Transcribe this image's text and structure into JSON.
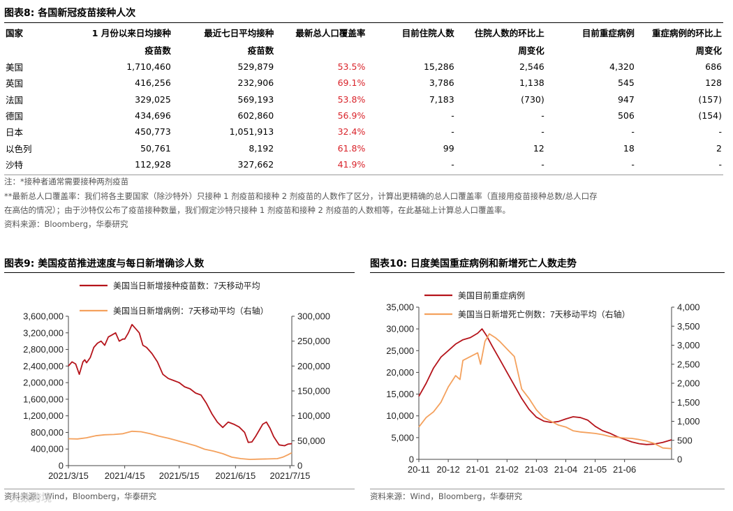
{
  "table": {
    "title": "图表8:  各国新冠疫苗接种人次",
    "headers": {
      "country": "国家",
      "c1_line1": "1 月份以来日均接种",
      "c1_line2": "疫苗数",
      "c2_line1": "最近七日平均接种",
      "c2_line2": "疫苗数",
      "c3": "最新总人口覆盖率",
      "c4": "目前住院人数",
      "c5_line1": "住院人数的环比上",
      "c5_line2": "周变化",
      "c6": "目前重症病例",
      "c7_line1": "重症病例的环比上",
      "c7_line2": "周变化"
    },
    "rows": [
      {
        "country": "美国",
        "daily": "1,710,460",
        "week": "529,879",
        "coverage": "53.5%",
        "hosp": "15,286",
        "hosp_chg": "2,546",
        "severe": "4,320",
        "severe_chg": "686"
      },
      {
        "country": "英国",
        "daily": "416,256",
        "week": "232,906",
        "coverage": "69.1%",
        "hosp": "3,786",
        "hosp_chg": "1,138",
        "severe": "545",
        "severe_chg": "128"
      },
      {
        "country": "法国",
        "daily": "329,025",
        "week": "569,193",
        "coverage": "53.8%",
        "hosp": "7,183",
        "hosp_chg": "(730)",
        "severe": "947",
        "severe_chg": "(157)"
      },
      {
        "country": "德国",
        "daily": "434,696",
        "week": "602,860",
        "coverage": "56.9%",
        "hosp": "-",
        "hosp_chg": "-",
        "severe": "506",
        "severe_chg": "(154)"
      },
      {
        "country": "日本",
        "daily": "450,773",
        "week": "1,051,913",
        "coverage": "32.4%",
        "hosp": "-",
        "hosp_chg": "-",
        "severe": "-",
        "severe_chg": "-"
      },
      {
        "country": "以色列",
        "daily": "50,761",
        "week": "8,192",
        "coverage": "61.8%",
        "hosp": "99",
        "hosp_chg": "12",
        "severe": "18",
        "severe_chg": "2"
      },
      {
        "country": "沙特",
        "daily": "112,928",
        "week": "327,662",
        "coverage": "41.9%",
        "hosp": "-",
        "hosp_chg": "-",
        "severe": "-",
        "severe_chg": "-"
      }
    ],
    "note1": "注：*接种者通常需要接种两剂疫苗",
    "note2": "**最新总人口覆盖率：我们将各主要国家（除沙特外）只接种 1 剂疫苗和接种 2 剂疫苗的人数作了区分，计算出更精确的总人口覆盖率（直接用疫苗接种总数/总人口存",
    "note3": "在高估的情况）；由于沙特仅公布了疫苗接种数量，我们假定沙特只接种 1 剂疫苗和接种 2 剂疫苗的人数相等，在此基础上计算总人口覆盖率。",
    "source": "资料来源：Bloomberg，华泰研究"
  },
  "charts": {
    "left_title": "图表9:  美国疫苗推进速度与每日新增确诊人数",
    "right_title": "图表10:  日度美国重症病例和新增死亡人数走势",
    "left_source": "资料来源：Wind，Bloomberg，华泰研究",
    "right_source": "资料来源：Wind，Bloomberg，华泰研究",
    "watermark": "大数跨境"
  },
  "colors": {
    "dark_red": "#b5141b",
    "orange": "#f4a15d",
    "red_text": "#d9232a"
  },
  "chart_data": [
    {
      "type": "line",
      "title": "美国疫苗推进速度与每日新增确诊人数",
      "xticks": [
        "2021/3/15",
        "2021/4/15",
        "2021/5/15",
        "2021/6/15",
        "2021/7/15"
      ],
      "ylim_left": [
        0,
        3600000
      ],
      "ylim_right": [
        0,
        300000
      ],
      "yticks_left": [
        "0",
        "400,000",
        "800,000",
        "1,200,000",
        "1,600,000",
        "2,000,000",
        "2,400,000",
        "2,800,000",
        "3,200,000",
        "3,600,000"
      ],
      "yticks_right": [
        "0",
        "50,000",
        "100,000",
        "150,000",
        "200,000",
        "250,000",
        "300,000"
      ],
      "legend_position": "top",
      "series": [
        {
          "name": "美国当日新增接种疫苗数：7天移动平均",
          "axis": "left",
          "x": [
            0,
            2,
            4,
            6,
            8,
            9,
            10,
            12,
            14,
            16,
            18,
            20,
            22,
            24,
            26,
            28,
            30,
            31,
            33,
            35,
            37,
            39,
            41,
            43,
            46,
            49,
            52,
            55,
            58,
            61,
            64,
            67,
            70,
            73,
            76,
            79,
            82,
            85,
            88,
            91,
            94,
            97,
            99,
            101,
            103,
            105,
            107,
            109,
            111,
            113,
            116,
            119,
            121,
            123
          ],
          "values": [
            2400000,
            2500000,
            2450000,
            2200000,
            2500000,
            2550000,
            2480000,
            2600000,
            2850000,
            2950000,
            3000000,
            2900000,
            3100000,
            3150000,
            3200000,
            3000000,
            3050000,
            3050000,
            3200000,
            3400000,
            3300000,
            3200000,
            2900000,
            2850000,
            2700000,
            2500000,
            2200000,
            2100000,
            2050000,
            2000000,
            1900000,
            1850000,
            1750000,
            1700000,
            1500000,
            1250000,
            1050000,
            920000,
            1050000,
            1000000,
            930000,
            800000,
            560000,
            570000,
            700000,
            850000,
            1000000,
            1050000,
            900000,
            700000,
            500000,
            480000,
            520000,
            530000
          ]
        },
        {
          "name": "美国当日新增病例：7天移动平均（右轴）",
          "axis": "right",
          "x": [
            0,
            5,
            10,
            15,
            20,
            25,
            30,
            35,
            40,
            45,
            50,
            55,
            60,
            65,
            70,
            75,
            80,
            85,
            90,
            95,
            100,
            105,
            110,
            115,
            118,
            121,
            123
          ],
          "values": [
            54000,
            53500,
            56000,
            60000,
            62000,
            62500,
            64000,
            69000,
            68000,
            64000,
            59000,
            55000,
            50000,
            45000,
            40000,
            33000,
            29000,
            24000,
            17000,
            14000,
            12500,
            13000,
            13500,
            14000,
            17000,
            22000,
            26000
          ]
        }
      ]
    },
    {
      "type": "line",
      "title": "日度美国重症病例和新增死亡人数走势",
      "xticks": [
        "20-11",
        "20-12",
        "21-01",
        "21-02",
        "21-03",
        "21-04",
        "21-05",
        "21-06"
      ],
      "ylim_left": [
        0,
        35000
      ],
      "ylim_right": [
        0,
        4000
      ],
      "yticks_left": [
        "0",
        "5,000",
        "10,000",
        "15,000",
        "20,000",
        "25,000",
        "30,000",
        "35,000"
      ],
      "yticks_right": [
        "0",
        "500",
        "1,000",
        "1,500",
        "2,000",
        "2,500",
        "3,000",
        "3,500",
        "4,000"
      ],
      "legend_position": "top",
      "series": [
        {
          "name": "美国目前重症病例",
          "axis": "left",
          "x": [
            0,
            0.25,
            0.5,
            0.75,
            1,
            1.25,
            1.5,
            1.75,
            2,
            2.15,
            2.3,
            2.5,
            2.75,
            3,
            3.25,
            3.5,
            3.75,
            4,
            4.25,
            4.5,
            4.75,
            5,
            5.25,
            5.5,
            5.75,
            6,
            6.25,
            6.5,
            6.75,
            7,
            7.25,
            7.5,
            7.75,
            8,
            8.3,
            8.6
          ],
          "values": [
            14500,
            17500,
            21000,
            23500,
            25000,
            26500,
            27500,
            28000,
            29000,
            30000,
            28500,
            26000,
            23000,
            20000,
            17000,
            14000,
            11500,
            9700,
            8800,
            8500,
            8700,
            9300,
            9800,
            9600,
            9000,
            7600,
            6600,
            6000,
            5200,
            4600,
            4000,
            3600,
            3400,
            3500,
            3900,
            4500
          ]
        },
        {
          "name": "美国当日新增死亡例数：7天移动平均（右轴）",
          "axis": "right",
          "x": [
            0,
            0.25,
            0.5,
            0.75,
            1,
            1.25,
            1.4,
            1.5,
            1.75,
            2,
            2.1,
            2.25,
            2.4,
            2.6,
            2.75,
            3,
            3.25,
            3.5,
            3.75,
            4,
            4.25,
            4.5,
            4.75,
            5,
            5.25,
            5.5,
            5.75,
            6,
            6.25,
            6.5,
            6.75,
            7,
            7.25,
            7.5,
            7.75,
            8,
            8.3,
            8.6
          ],
          "values": [
            850,
            1100,
            1250,
            1500,
            1900,
            2200,
            2100,
            2600,
            2700,
            2800,
            2500,
            3100,
            3300,
            3200,
            3100,
            2900,
            2700,
            1850,
            1600,
            1300,
            1100,
            1000,
            900,
            850,
            750,
            720,
            700,
            680,
            650,
            600,
            580,
            560,
            550,
            520,
            480,
            420,
            300,
            280
          ]
        }
      ]
    }
  ]
}
